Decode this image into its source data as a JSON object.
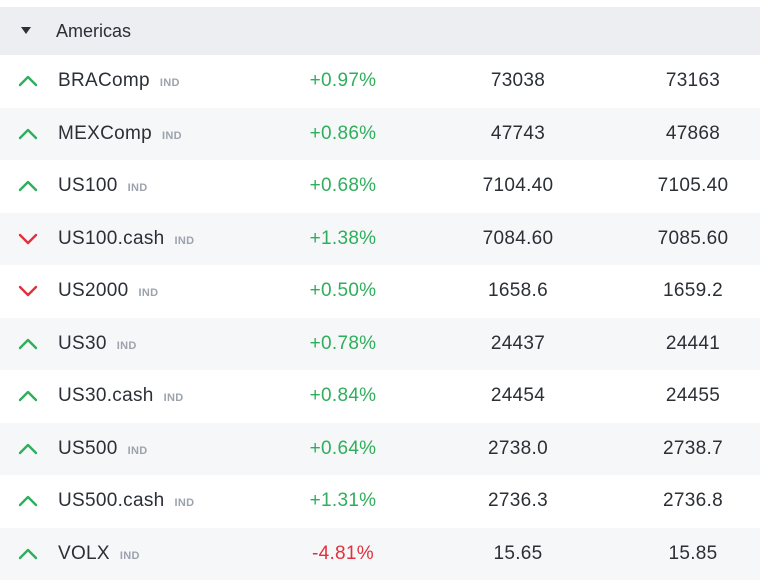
{
  "group": {
    "title": "Americas",
    "icon": "caret-down-icon"
  },
  "colors": {
    "up": "#2fae5c",
    "down": "#e0313d",
    "header_bg": "#eceef1",
    "row_alt": "#f6f7f9"
  },
  "rows": [
    {
      "symbol": "BRAComp",
      "tag": "IND",
      "direction": "up",
      "change": "+0.97%",
      "change_dir": "up",
      "bid": "73038",
      "ask": "73163"
    },
    {
      "symbol": "MEXComp",
      "tag": "IND",
      "direction": "up",
      "change": "+0.86%",
      "change_dir": "up",
      "bid": "47743",
      "ask": "47868"
    },
    {
      "symbol": "US100",
      "tag": "IND",
      "direction": "up",
      "change": "+0.68%",
      "change_dir": "up",
      "bid": "7104.40",
      "ask": "7105.40"
    },
    {
      "symbol": "US100.cash",
      "tag": "IND",
      "direction": "down",
      "change": "+1.38%",
      "change_dir": "up",
      "bid": "7084.60",
      "ask": "7085.60"
    },
    {
      "symbol": "US2000",
      "tag": "IND",
      "direction": "down",
      "change": "+0.50%",
      "change_dir": "up",
      "bid": "1658.6",
      "ask": "1659.2"
    },
    {
      "symbol": "US30",
      "tag": "IND",
      "direction": "up",
      "change": "+0.78%",
      "change_dir": "up",
      "bid": "24437",
      "ask": "24441"
    },
    {
      "symbol": "US30.cash",
      "tag": "IND",
      "direction": "up",
      "change": "+0.84%",
      "change_dir": "up",
      "bid": "24454",
      "ask": "24455"
    },
    {
      "symbol": "US500",
      "tag": "IND",
      "direction": "up",
      "change": "+0.64%",
      "change_dir": "up",
      "bid": "2738.0",
      "ask": "2738.7"
    },
    {
      "symbol": "US500.cash",
      "tag": "IND",
      "direction": "up",
      "change": "+1.31%",
      "change_dir": "up",
      "bid": "2736.3",
      "ask": "2736.8"
    },
    {
      "symbol": "VOLX",
      "tag": "IND",
      "direction": "up",
      "change": "-4.81%",
      "change_dir": "down",
      "bid": "15.65",
      "ask": "15.85"
    }
  ]
}
